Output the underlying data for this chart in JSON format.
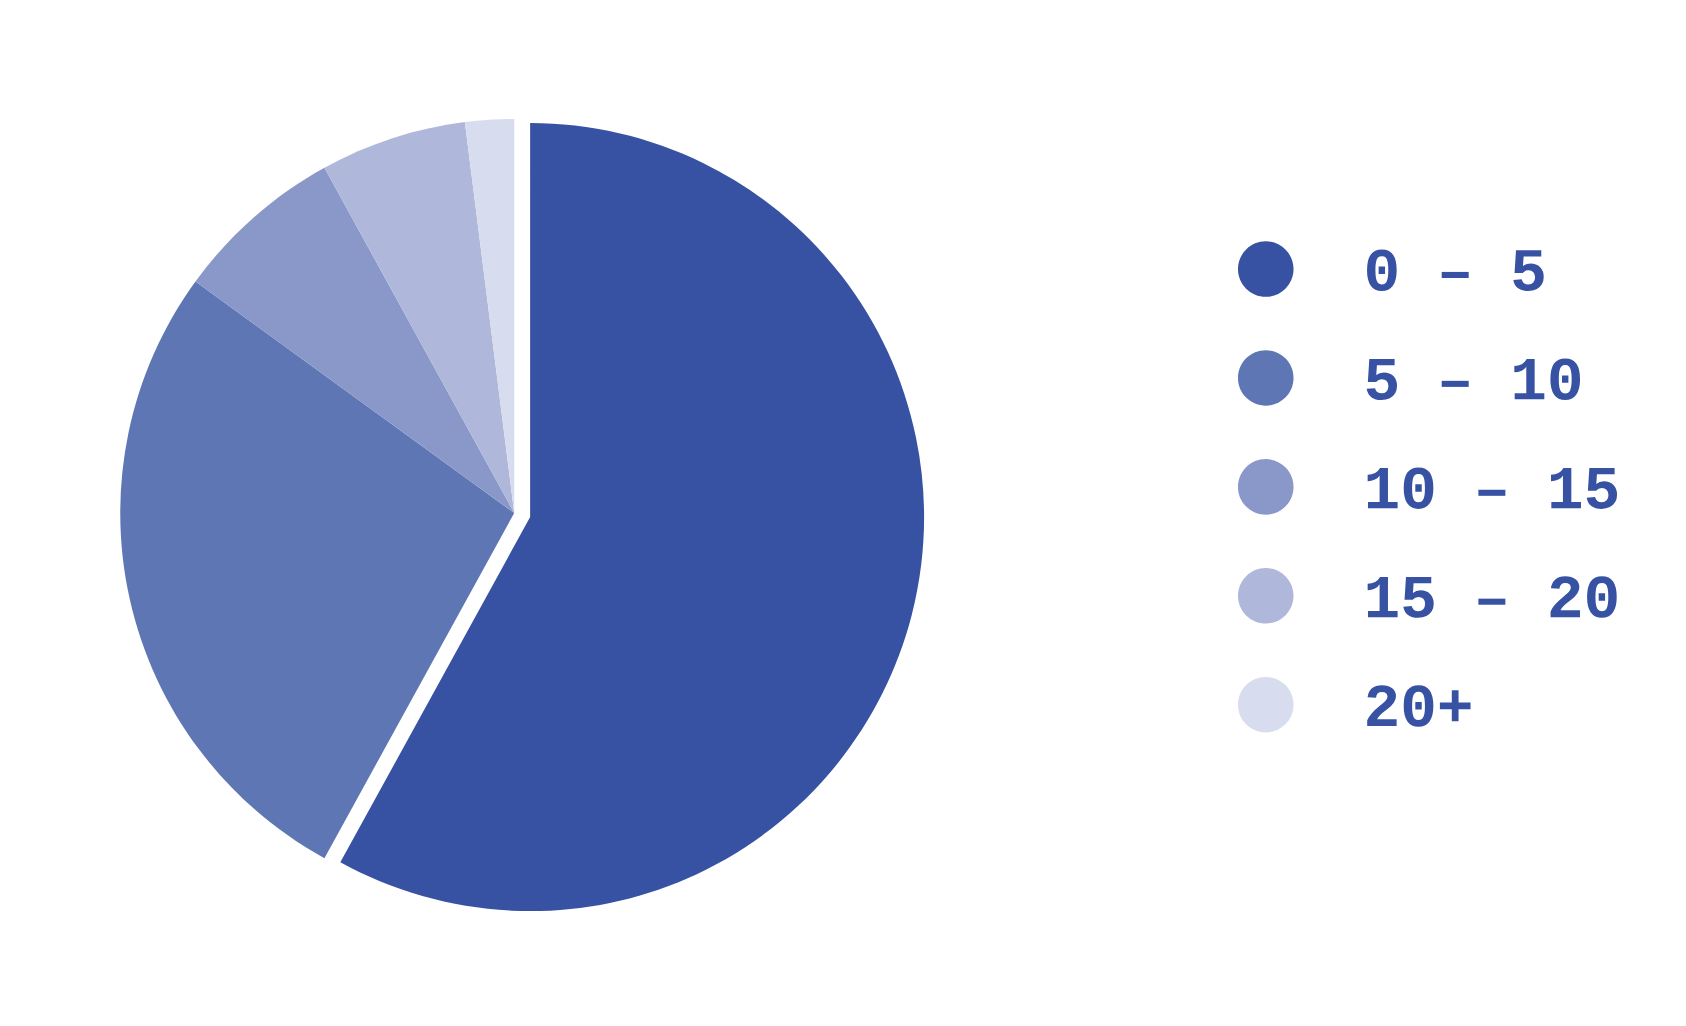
{
  "chart_data": {
    "type": "pie",
    "categories": [
      "0 – 5",
      "5 – 10",
      "10 – 15",
      "15 – 20",
      "20+"
    ],
    "values": [
      58,
      27,
      7,
      6,
      2
    ],
    "colors": [
      "#3752a3",
      "#5e77b4",
      "#8a98c9",
      "#afb8da",
      "#d8dcef"
    ],
    "legend": "right"
  }
}
